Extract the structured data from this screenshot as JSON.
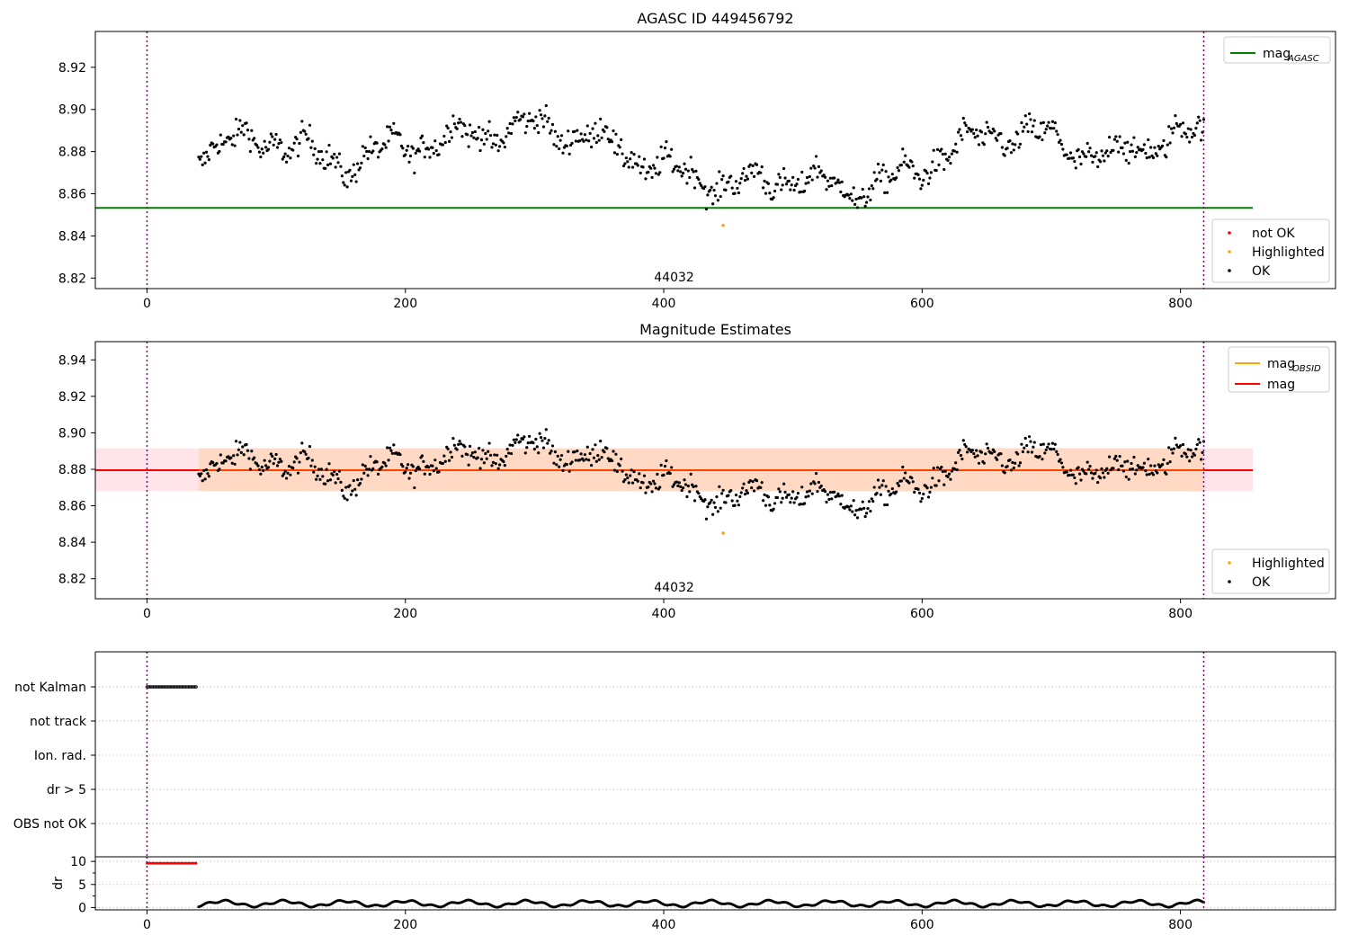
{
  "chart_data": [
    {
      "type": "scatter",
      "title": "AGASC ID 449456792",
      "obsid_label": "44032",
      "xlim": [
        -40,
        920
      ],
      "ylim": [
        8.815,
        8.937
      ],
      "xticks": [
        "0",
        "200",
        "400",
        "600",
        "800"
      ],
      "yticks": [
        "8.82",
        "8.84",
        "8.86",
        "8.88",
        "8.90",
        "8.92"
      ],
      "vlines_x": [
        0,
        818
      ],
      "hline": {
        "y": 8.8533,
        "x_range": [
          -40,
          856
        ],
        "color": "#008000"
      },
      "highlighted": [
        {
          "x": 446,
          "y": 8.845
        }
      ],
      "legend_lines": [
        {
          "label": "mag",
          "sub": "AGASC",
          "color": "#008000"
        }
      ],
      "legend_points": [
        {
          "label": "not OK",
          "color": "#ff0000"
        },
        {
          "label": "Highlighted",
          "color": "#ffa500"
        },
        {
          "label": "OK",
          "color": "#000000"
        }
      ]
    },
    {
      "type": "scatter",
      "title": "Magnitude Estimates",
      "obsid_label": "44032",
      "xlim": [
        -40,
        920
      ],
      "ylim": [
        8.809,
        8.95
      ],
      "xticks": [
        "0",
        "200",
        "400",
        "600",
        "800"
      ],
      "yticks": [
        "8.82",
        "8.84",
        "8.86",
        "8.88",
        "8.90",
        "8.92",
        "8.94"
      ],
      "vlines_x": [
        0,
        818
      ],
      "mag_line": {
        "y": 8.8795,
        "color": "#ff0000"
      },
      "band_outer": {
        "y0": 8.868,
        "y1": 8.8915,
        "color": "#ffe4ea"
      },
      "band_inner": {
        "y0": 8.868,
        "y1": 8.8915,
        "x_range": [
          40,
          818
        ],
        "color": "#ffd9c4"
      },
      "highlighted": [
        {
          "x": 446,
          "y": 8.845
        }
      ],
      "legend_lines": [
        {
          "label": "mag",
          "sub": "OBSID",
          "color": "#ffa500"
        },
        {
          "label": "mag",
          "sub": "",
          "color": "#ff0000"
        }
      ],
      "legend_points": [
        {
          "label": "Highlighted",
          "color": "#ffa500"
        },
        {
          "label": "OK",
          "color": "#000000"
        }
      ]
    },
    {
      "type": "scatter",
      "categories": [
        "not Kalman",
        "not track",
        "Ion. rad.",
        "dr > 5",
        "OBS not OK"
      ],
      "flag_segments": [
        {
          "category": "not Kalman",
          "x_range": [
            0,
            38
          ]
        }
      ],
      "xlim": [
        -40,
        920
      ],
      "xticks": [
        "0",
        "200",
        "400",
        "600",
        "800"
      ],
      "vlines_x": [
        0,
        818
      ]
    },
    {
      "type": "scatter",
      "ylabel": "dr",
      "ylim": [
        -0.5,
        11
      ],
      "yticks": [
        "0",
        "5",
        "10"
      ],
      "xlim": [
        -40,
        920
      ],
      "xticks": [
        "0",
        "200",
        "400",
        "600",
        "800"
      ],
      "vlines_x": [
        0,
        818
      ],
      "red_segment": {
        "x_range": [
          0,
          38
        ],
        "y": 9.6
      },
      "dr_range": {
        "x_range": [
          40,
          818
        ],
        "min": 0.0,
        "max": 1.9
      }
    }
  ]
}
